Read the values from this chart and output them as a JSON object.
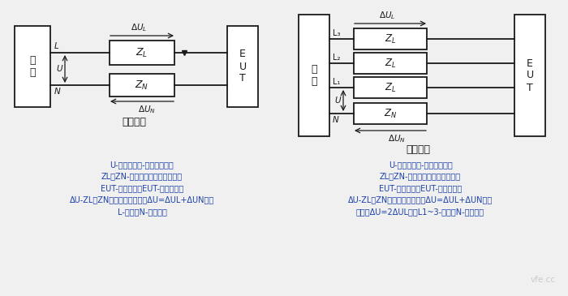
{
  "bg_color": "#f0f0f0",
  "single_phase_label": "单相设备",
  "three_phase_label": "三相设备",
  "single_phase_notes": [
    "U-电源的相线-中性线电压；",
    "ZL，ZN-导线及电流探头的阻抗；",
    "EUT-受试设备；EUT-受试设备；",
    "ΔU-ZL和ZN上的电压降之和（ΔU=ΔUL+ΔUN）；",
    "L-相线；N-中性线。"
  ],
  "three_phase_notes": [
    "U-电源的相线-中性线电压；",
    "ZL，ZN-导线及电流探头的阻抗；",
    "EUT-受试设备；EUT-受试设备；",
    "ΔU-ZL和ZN上的电压降之和（ΔU=ΔUL+ΔUN）；",
    "相间（ΔU=2ΔUL）；L1~3-相线；N-中性线。"
  ],
  "text_color": "#1a3faa",
  "diagram_color": "#1a1a1a",
  "watermark": "vfe.cc"
}
